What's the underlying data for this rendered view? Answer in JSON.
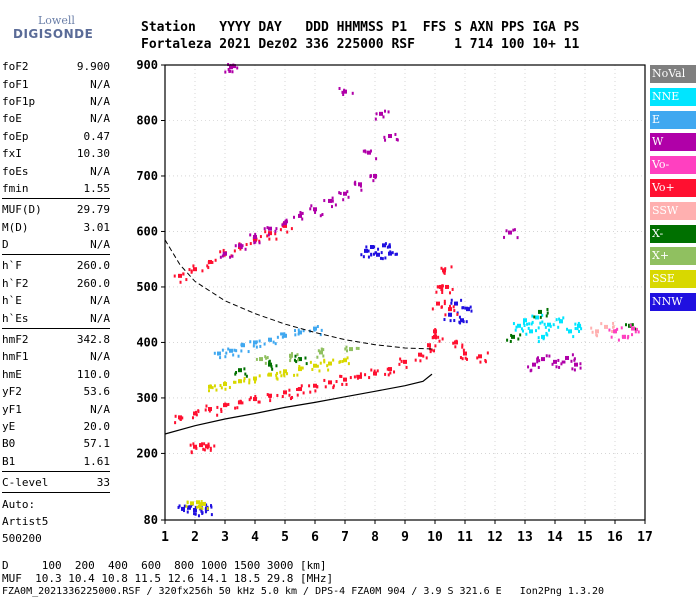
{
  "logo": {
    "line1": "Lowell",
    "line2": "DIGISONDE"
  },
  "header": {
    "line1": "Station   YYYY DAY   DDD HHMMSS P1  FFS S AXN PPS IGA PS",
    "line2": "Fortaleza 2021 Dez02 336 225000 RSF     1 714 100 10+ 11"
  },
  "params": {
    "group1": [
      {
        "name": "foF2",
        "value": "9.900"
      },
      {
        "name": "foF1",
        "value": "N/A"
      },
      {
        "name": "foF1p",
        "value": "N/A"
      },
      {
        "name": "foE",
        "value": "N/A"
      },
      {
        "name": "foEp",
        "value": "0.47"
      },
      {
        "name": "fxI",
        "value": "10.30"
      },
      {
        "name": "foEs",
        "value": "N/A"
      },
      {
        "name": "fmin",
        "value": "1.55"
      }
    ],
    "group2": [
      {
        "name": "MUF(D)",
        "value": "29.79"
      },
      {
        "name": "M(D)",
        "value": "3.01"
      },
      {
        "name": "D",
        "value": "N/A"
      }
    ],
    "group3": [
      {
        "name": "h`F",
        "value": "260.0"
      },
      {
        "name": "h`F2",
        "value": "260.0"
      },
      {
        "name": "h`E",
        "value": "N/A"
      },
      {
        "name": "h`Es",
        "value": "N/A"
      }
    ],
    "group4": [
      {
        "name": "hmF2",
        "value": "342.8"
      },
      {
        "name": "hmF1",
        "value": "N/A"
      },
      {
        "name": "hmE",
        "value": "110.0"
      },
      {
        "name": "yF2",
        "value": "53.6"
      },
      {
        "name": "yF1",
        "value": "N/A"
      },
      {
        "name": "yE",
        "value": "20.0"
      },
      {
        "name": "B0",
        "value": "57.1"
      },
      {
        "name": "B1",
        "value": "1.61"
      }
    ],
    "group5": [
      {
        "name": "C-level",
        "value": "33"
      }
    ],
    "auto": [
      "Auto:",
      "Artist5",
      "500200"
    ]
  },
  "legend": [
    {
      "label": "NoVal",
      "color": "#7f7f7f"
    },
    {
      "label": "NNE",
      "color": "#00e5ff"
    },
    {
      "label": "E",
      "color": "#40a8f0"
    },
    {
      "label": "W",
      "color": "#b000a8"
    },
    {
      "label": "Vo-",
      "color": "#ff40c0"
    },
    {
      "label": "Vo+",
      "color": "#ff1030"
    },
    {
      "label": "SSW",
      "color": "#ffb0b0"
    },
    {
      "label": "X-",
      "color": "#007000"
    },
    {
      "label": "X+",
      "color": "#90c060"
    },
    {
      "label": "SSE",
      "color": "#d8d800"
    },
    {
      "label": "NNW",
      "color": "#2010e0"
    }
  ],
  "footer": {
    "line1": "D     100  200  400  600  800 1000 1500 3000 [km]",
    "line2": "MUF  10.3 10.4 10.8 11.5 12.6 14.1 18.5 29.8 [MHz]",
    "line3": "FZA0M_2021336225000.RSF / 320fx256h 50 kHz 5.0 km / DPS-4 FZA0M 904 / 3.9 S 321.6 E   Ion2Png 1.3.20"
  },
  "chart_data": {
    "type": "scatter",
    "xlim": [
      1,
      17
    ],
    "ylim": [
      80,
      900
    ],
    "x_ticks": [
      1,
      2,
      3,
      4,
      5,
      6,
      7,
      8,
      9,
      10,
      11,
      12,
      13,
      14,
      15,
      16,
      17
    ],
    "y_ticks": [
      80,
      200,
      300,
      400,
      500,
      600,
      700,
      800,
      900
    ],
    "grid": true,
    "profile_curve": [
      [
        1.0,
        235
      ],
      [
        2.0,
        250
      ],
      [
        3.0,
        262
      ],
      [
        4.0,
        272
      ],
      [
        5.0,
        283
      ],
      [
        6.0,
        292
      ],
      [
        7.0,
        302
      ],
      [
        8.0,
        312
      ],
      [
        9.0,
        322
      ],
      [
        9.6,
        330
      ],
      [
        9.9,
        343
      ]
    ],
    "muf_curve": [
      [
        1.0,
        585
      ],
      [
        1.5,
        540
      ],
      [
        2.0,
        510
      ],
      [
        3.0,
        475
      ],
      [
        4.0,
        452
      ],
      [
        5.0,
        433
      ],
      [
        6.0,
        418
      ],
      [
        7.0,
        405
      ],
      [
        8.0,
        396
      ],
      [
        9.0,
        390
      ],
      [
        10.0,
        388
      ]
    ],
    "traces": [
      {
        "color": "#ff1030",
        "points": [
          [
            1.5,
            265
          ],
          [
            2.0,
            272
          ],
          [
            2.5,
            280
          ],
          [
            3.0,
            287
          ],
          [
            3.5,
            292
          ],
          [
            4.0,
            298
          ],
          [
            4.5,
            304
          ],
          [
            5.0,
            310
          ],
          [
            5.5,
            316
          ],
          [
            6.0,
            322
          ],
          [
            6.5,
            328
          ],
          [
            7.0,
            333
          ],
          [
            7.5,
            338
          ],
          [
            8.0,
            344
          ],
          [
            8.5,
            352
          ],
          [
            9.0,
            365
          ],
          [
            9.5,
            378
          ],
          [
            9.8,
            395
          ],
          [
            10.0,
            410
          ]
        ]
      },
      {
        "color": "#ff1030",
        "points": [
          [
            1.5,
            520
          ],
          [
            2.0,
            532
          ],
          [
            2.5,
            545
          ],
          [
            3.0,
            560
          ],
          [
            3.5,
            572
          ],
          [
            4.0,
            585
          ],
          [
            4.5,
            597
          ],
          [
            5.0,
            610
          ]
        ]
      },
      {
        "color": "#b000a8",
        "points": [
          [
            3.0,
            560
          ],
          [
            3.5,
            575
          ],
          [
            4.0,
            590
          ],
          [
            4.5,
            605
          ],
          [
            5.0,
            615
          ],
          [
            5.5,
            628
          ],
          [
            6.0,
            640
          ],
          [
            6.5,
            655
          ],
          [
            7.0,
            668
          ],
          [
            7.5,
            685
          ],
          [
            8.0,
            700
          ]
        ]
      },
      {
        "color": "#d8d800",
        "points": [
          [
            2.5,
            320
          ],
          [
            3.0,
            325
          ],
          [
            3.5,
            330
          ],
          [
            4.0,
            335
          ],
          [
            4.5,
            342
          ],
          [
            5.0,
            348
          ],
          [
            5.5,
            352
          ],
          [
            6.0,
            358
          ],
          [
            6.5,
            362
          ],
          [
            7.0,
            368
          ]
        ]
      },
      {
        "color": "#40a8f0",
        "points": [
          [
            2.8,
            380
          ],
          [
            3.2,
            385
          ],
          [
            3.6,
            395
          ],
          [
            4.0,
            400
          ],
          [
            4.5,
            405
          ],
          [
            5.0,
            412
          ],
          [
            5.5,
            418
          ],
          [
            6.0,
            425
          ]
        ]
      },
      {
        "color": "#00e5ff",
        "points": [
          [
            12.8,
            430
          ],
          [
            13.0,
            440
          ],
          [
            13.2,
            420
          ],
          [
            13.4,
            445
          ],
          [
            13.6,
            410
          ],
          [
            13.8,
            432
          ],
          [
            14.2,
            438
          ],
          [
            14.5,
            420
          ],
          [
            14.8,
            430
          ]
        ]
      },
      {
        "color": "#2010e0",
        "points": [
          [
            7.7,
            565
          ],
          [
            7.9,
            572
          ],
          [
            8.1,
            558
          ],
          [
            8.3,
            575
          ],
          [
            8.5,
            560
          ],
          [
            10.5,
            450
          ],
          [
            10.7,
            470
          ],
          [
            10.9,
            440
          ],
          [
            11.1,
            460
          ]
        ]
      },
      {
        "color": "#ff1030",
        "points": [
          [
            10.0,
            420
          ],
          [
            10.1,
            470
          ],
          [
            10.2,
            500
          ],
          [
            10.3,
            530
          ],
          [
            10.4,
            500
          ],
          [
            10.5,
            460
          ],
          [
            10.7,
            400
          ],
          [
            11.0,
            380
          ],
          [
            11.5,
            375
          ]
        ]
      },
      {
        "color": "#b000a8",
        "points": [
          [
            13.3,
            360
          ],
          [
            13.6,
            370
          ],
          [
            14.0,
            365
          ],
          [
            14.4,
            372
          ],
          [
            14.7,
            360
          ]
        ]
      },
      {
        "color": "#007000",
        "points": [
          [
            3.5,
            350
          ],
          [
            4.5,
            360
          ],
          [
            5.5,
            370
          ],
          [
            12.6,
            410
          ],
          [
            13.5,
            455
          ],
          [
            16.5,
            430
          ]
        ]
      },
      {
        "color": "#90c060",
        "points": [
          [
            4.2,
            370
          ],
          [
            5.2,
            376
          ],
          [
            6.2,
            382
          ],
          [
            7.2,
            388
          ]
        ]
      },
      {
        "color": "#ff1030",
        "points": [
          [
            2.0,
            212
          ],
          [
            2.2,
            215
          ],
          [
            2.4,
            213
          ]
        ]
      },
      {
        "color": "#2010e0",
        "points": [
          [
            1.6,
            100
          ],
          [
            1.8,
            102
          ],
          [
            2.0,
            98
          ],
          [
            2.2,
            101
          ],
          [
            2.4,
            100
          ]
        ]
      },
      {
        "color": "#d8d800",
        "points": [
          [
            1.9,
            110
          ],
          [
            2.1,
            112
          ],
          [
            2.3,
            109
          ]
        ]
      },
      {
        "color": "#b000a8",
        "points": [
          [
            3.2,
            896
          ],
          [
            3.3,
            898
          ],
          [
            7.0,
            852
          ],
          [
            8.2,
            812
          ],
          [
            7.8,
            742
          ],
          [
            8.5,
            772
          ],
          [
            12.5,
            598
          ]
        ]
      },
      {
        "color": "#ff40c0",
        "points": [
          [
            16.0,
            420
          ],
          [
            16.3,
            410
          ],
          [
            16.6,
            425
          ]
        ]
      },
      {
        "color": "#ffb0b0",
        "points": [
          [
            15.4,
            420
          ],
          [
            15.7,
            428
          ]
        ]
      }
    ]
  }
}
